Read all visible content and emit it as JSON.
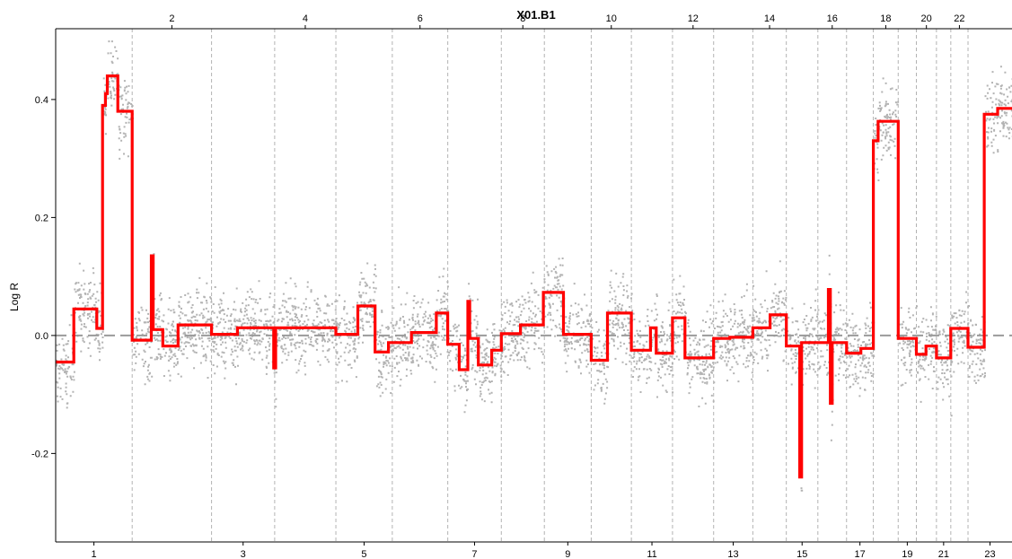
{
  "chart_data": {
    "type": "line",
    "title": "X01.B1",
    "ylabel": "Log R",
    "ylim": [
      -0.35,
      0.52
    ],
    "yticks": [
      -0.2,
      0.0,
      0.2,
      0.4
    ],
    "ytick_labels": [
      "-0.2",
      "0.0",
      "0.2",
      "0.4"
    ],
    "grid": "vertical dashed chromosome boundaries",
    "reference_line": 0.0,
    "chromosomes": [
      {
        "label": "1",
        "start": 0,
        "end": 0.08
      },
      {
        "label": "2",
        "start": 0.08,
        "end": 0.163
      },
      {
        "label": "3",
        "start": 0.163,
        "end": 0.229
      },
      {
        "label": "4",
        "start": 0.229,
        "end": 0.293
      },
      {
        "label": "5",
        "start": 0.293,
        "end": 0.352
      },
      {
        "label": "6",
        "start": 0.352,
        "end": 0.41
      },
      {
        "label": "7",
        "start": 0.41,
        "end": 0.466
      },
      {
        "label": "8",
        "start": 0.466,
        "end": 0.511
      },
      {
        "label": "9",
        "start": 0.511,
        "end": 0.56
      },
      {
        "label": "10",
        "start": 0.56,
        "end": 0.602
      },
      {
        "label": "11",
        "start": 0.602,
        "end": 0.645
      },
      {
        "label": "12",
        "start": 0.645,
        "end": 0.688
      },
      {
        "label": "13",
        "start": 0.688,
        "end": 0.729
      },
      {
        "label": "14",
        "start": 0.729,
        "end": 0.764
      },
      {
        "label": "15",
        "start": 0.764,
        "end": 0.797
      },
      {
        "label": "16",
        "start": 0.797,
        "end": 0.827
      },
      {
        "label": "17",
        "start": 0.827,
        "end": 0.855
      },
      {
        "label": "18",
        "start": 0.855,
        "end": 0.881
      },
      {
        "label": "19",
        "start": 0.881,
        "end": 0.9
      },
      {
        "label": "20",
        "start": 0.9,
        "end": 0.921
      },
      {
        "label": "21",
        "start": 0.921,
        "end": 0.936
      },
      {
        "label": "22",
        "start": 0.936,
        "end": 0.954
      },
      {
        "label": "23",
        "start": 0.954,
        "end": 1.0
      }
    ],
    "segments": [
      {
        "x0": 0.0,
        "x1": 0.019,
        "y": -0.045
      },
      {
        "x0": 0.019,
        "x1": 0.043,
        "y": 0.045
      },
      {
        "x0": 0.043,
        "x1": 0.049,
        "y": 0.012
      },
      {
        "x0": 0.049,
        "x1": 0.052,
        "y": 0.39
      },
      {
        "x0": 0.052,
        "x1": 0.054,
        "y": 0.41
      },
      {
        "x0": 0.054,
        "x1": 0.065,
        "y": 0.44
      },
      {
        "x0": 0.065,
        "x1": 0.08,
        "y": 0.38
      },
      {
        "x0": 0.08,
        "x1": 0.1,
        "y": -0.008
      },
      {
        "x0": 0.1,
        "x1": 0.102,
        "y": 0.135
      },
      {
        "x0": 0.102,
        "x1": 0.112,
        "y": 0.01
      },
      {
        "x0": 0.112,
        "x1": 0.128,
        "y": -0.018
      },
      {
        "x0": 0.128,
        "x1": 0.163,
        "y": 0.018
      },
      {
        "x0": 0.163,
        "x1": 0.19,
        "y": 0.002
      },
      {
        "x0": 0.19,
        "x1": 0.228,
        "y": 0.013
      },
      {
        "x0": 0.228,
        "x1": 0.23,
        "y": -0.055
      },
      {
        "x0": 0.23,
        "x1": 0.293,
        "y": 0.013
      },
      {
        "x0": 0.293,
        "x1": 0.316,
        "y": 0.002
      },
      {
        "x0": 0.316,
        "x1": 0.334,
        "y": 0.05
      },
      {
        "x0": 0.334,
        "x1": 0.348,
        "y": -0.028
      },
      {
        "x0": 0.348,
        "x1": 0.372,
        "y": -0.012
      },
      {
        "x0": 0.372,
        "x1": 0.398,
        "y": 0.005
      },
      {
        "x0": 0.398,
        "x1": 0.41,
        "y": 0.038
      },
      {
        "x0": 0.41,
        "x1": 0.422,
        "y": -0.015
      },
      {
        "x0": 0.422,
        "x1": 0.431,
        "y": -0.058
      },
      {
        "x0": 0.431,
        "x1": 0.433,
        "y": 0.058
      },
      {
        "x0": 0.433,
        "x1": 0.442,
        "y": -0.005
      },
      {
        "x0": 0.442,
        "x1": 0.456,
        "y": -0.05
      },
      {
        "x0": 0.456,
        "x1": 0.466,
        "y": -0.025
      },
      {
        "x0": 0.466,
        "x1": 0.486,
        "y": 0.003
      },
      {
        "x0": 0.486,
        "x1": 0.51,
        "y": 0.018
      },
      {
        "x0": 0.51,
        "x1": 0.531,
        "y": 0.073
      },
      {
        "x0": 0.531,
        "x1": 0.56,
        "y": 0.002
      },
      {
        "x0": 0.56,
        "x1": 0.577,
        "y": -0.042
      },
      {
        "x0": 0.577,
        "x1": 0.602,
        "y": 0.038
      },
      {
        "x0": 0.602,
        "x1": 0.622,
        "y": -0.025
      },
      {
        "x0": 0.622,
        "x1": 0.628,
        "y": 0.013
      },
      {
        "x0": 0.628,
        "x1": 0.645,
        "y": -0.03
      },
      {
        "x0": 0.645,
        "x1": 0.658,
        "y": 0.03
      },
      {
        "x0": 0.658,
        "x1": 0.688,
        "y": -0.038
      },
      {
        "x0": 0.688,
        "x1": 0.705,
        "y": -0.005
      },
      {
        "x0": 0.705,
        "x1": 0.729,
        "y": -0.003
      },
      {
        "x0": 0.729,
        "x1": 0.747,
        "y": 0.013
      },
      {
        "x0": 0.747,
        "x1": 0.764,
        "y": 0.035
      },
      {
        "x0": 0.764,
        "x1": 0.778,
        "y": -0.018
      },
      {
        "x0": 0.778,
        "x1": 0.78,
        "y": -0.24
      },
      {
        "x0": 0.78,
        "x1": 0.808,
        "y": -0.012
      },
      {
        "x0": 0.808,
        "x1": 0.81,
        "y": 0.078
      },
      {
        "x0": 0.81,
        "x1": 0.812,
        "y": -0.115
      },
      {
        "x0": 0.812,
        "x1": 0.827,
        "y": -0.012
      },
      {
        "x0": 0.827,
        "x1": 0.842,
        "y": -0.03
      },
      {
        "x0": 0.842,
        "x1": 0.855,
        "y": -0.022
      },
      {
        "x0": 0.855,
        "x1": 0.86,
        "y": 0.33
      },
      {
        "x0": 0.86,
        "x1": 0.881,
        "y": 0.363
      },
      {
        "x0": 0.881,
        "x1": 0.9,
        "y": -0.005
      },
      {
        "x0": 0.9,
        "x1": 0.91,
        "y": -0.032
      },
      {
        "x0": 0.91,
        "x1": 0.921,
        "y": -0.018
      },
      {
        "x0": 0.921,
        "x1": 0.936,
        "y": -0.038
      },
      {
        "x0": 0.936,
        "x1": 0.954,
        "y": 0.012
      },
      {
        "x0": 0.954,
        "x1": 0.971,
        "y": -0.02
      },
      {
        "x0": 0.971,
        "x1": 0.985,
        "y": 0.375
      },
      {
        "x0": 0.985,
        "x1": 1.0,
        "y": 0.385
      }
    ],
    "colors": {
      "segment_line": "#ff0000",
      "probe_points": "#b3b3b3",
      "chromosome_divider": "#b3b3b3",
      "zero_line": "#9a9a9a",
      "axis": "#000000"
    }
  }
}
